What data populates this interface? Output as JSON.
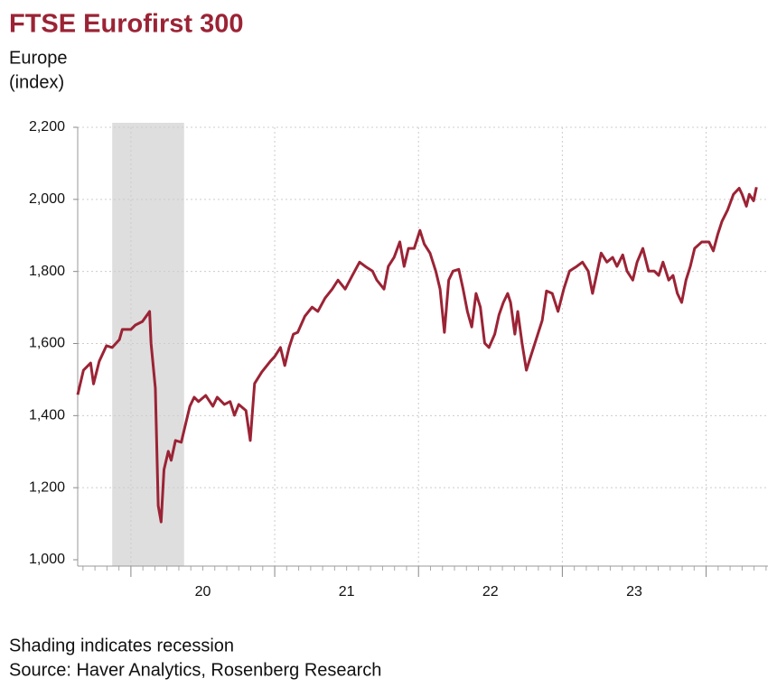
{
  "chart_data": {
    "type": "line",
    "title": "FTSE Eurofirst 300",
    "subtitle": "Europe",
    "y_label": "(index)",
    "notes": [
      "Shading indicates recession",
      "Source: Haver Analytics, Rosenberg Research"
    ],
    "color": "#9b2335",
    "recession": [
      2019.87,
      2020.37
    ],
    "recession_color": "#dedede",
    "xlim": [
      2019.63,
      2024.43
    ],
    "xticks": [
      {
        "value": 2020.5,
        "label": "20"
      },
      {
        "value": 2021.5,
        "label": "21"
      },
      {
        "value": 2022.5,
        "label": "22"
      },
      {
        "value": 2023.5,
        "label": "23"
      }
    ],
    "year_ticks": [
      2020,
      2021,
      2022,
      2023,
      2024
    ],
    "ylim": [
      1000,
      2200
    ],
    "yticks": [
      {
        "value": 1000,
        "label": "1,000"
      },
      {
        "value": 1200,
        "label": "1,200"
      },
      {
        "value": 1400,
        "label": "1,400"
      },
      {
        "value": 1600,
        "label": "1,600"
      },
      {
        "value": 1800,
        "label": "1,800"
      },
      {
        "value": 2000,
        "label": "2,000"
      },
      {
        "value": 2200,
        "label": "2,200"
      }
    ],
    "grid": true,
    "x": [
      2019.63,
      2019.67,
      2019.72,
      2019.74,
      2019.78,
      2019.83,
      2019.87,
      2019.92,
      2019.94,
      2020.0,
      2020.03,
      2020.08,
      2020.13,
      2020.14,
      2020.17,
      2020.19,
      2020.21,
      2020.23,
      2020.26,
      2020.28,
      2020.31,
      2020.35,
      2020.38,
      2020.41,
      2020.44,
      2020.47,
      2020.52,
      2020.57,
      2020.6,
      2020.65,
      2020.69,
      2020.72,
      2020.75,
      2020.8,
      2020.83,
      2020.86,
      2020.91,
      2020.97,
      2021.0,
      2021.04,
      2021.07,
      2021.1,
      2021.13,
      2021.16,
      2021.21,
      2021.26,
      2021.3,
      2021.35,
      2021.4,
      2021.44,
      2021.49,
      2021.54,
      2021.59,
      2021.63,
      2021.68,
      2021.71,
      2021.76,
      2021.79,
      2021.83,
      2021.87,
      2021.9,
      2021.93,
      2021.97,
      2022.01,
      2022.04,
      2022.08,
      2022.12,
      2022.15,
      2022.18,
      2022.21,
      2022.24,
      2022.28,
      2022.31,
      2022.34,
      2022.37,
      2022.4,
      2022.43,
      2022.46,
      2022.49,
      2022.53,
      2022.56,
      2022.59,
      2022.62,
      2022.64,
      2022.67,
      2022.69,
      2022.72,
      2022.75,
      2022.78,
      2022.82,
      2022.86,
      2022.89,
      2022.93,
      2022.97,
      2023.01,
      2023.05,
      2023.1,
      2023.14,
      2023.18,
      2023.21,
      2023.23,
      2023.27,
      2023.31,
      2023.35,
      2023.38,
      2023.42,
      2023.45,
      2023.49,
      2023.52,
      2023.56,
      2023.6,
      2023.64,
      2023.67,
      2023.7,
      2023.74,
      2023.77,
      2023.8,
      2023.83,
      2023.86,
      2023.89,
      2023.92,
      2023.97,
      2024.02,
      2024.05,
      2024.08,
      2024.11,
      2024.15,
      2024.19,
      2024.23,
      2024.25,
      2024.28,
      2024.3,
      2024.33,
      2024.35
    ],
    "values": [
      1458,
      1526,
      1546,
      1488,
      1551,
      1594,
      1589,
      1611,
      1639,
      1639,
      1651,
      1661,
      1689,
      1601,
      1476,
      1150,
      1105,
      1250,
      1301,
      1276,
      1331,
      1326,
      1376,
      1426,
      1451,
      1439,
      1456,
      1426,
      1451,
      1431,
      1439,
      1401,
      1431,
      1414,
      1331,
      1489,
      1521,
      1551,
      1564,
      1589,
      1539,
      1589,
      1626,
      1631,
      1676,
      1701,
      1689,
      1726,
      1751,
      1776,
      1751,
      1789,
      1826,
      1814,
      1801,
      1776,
      1751,
      1814,
      1839,
      1882,
      1814,
      1864,
      1864,
      1914,
      1876,
      1851,
      1801,
      1751,
      1631,
      1776,
      1801,
      1806,
      1751,
      1689,
      1646,
      1739,
      1701,
      1601,
      1589,
      1626,
      1680,
      1714,
      1739,
      1714,
      1626,
      1689,
      1601,
      1526,
      1564,
      1614,
      1664,
      1746,
      1739,
      1689,
      1751,
      1801,
      1814,
      1826,
      1801,
      1739,
      1776,
      1851,
      1826,
      1839,
      1814,
      1846,
      1801,
      1776,
      1826,
      1864,
      1801,
      1801,
      1789,
      1826,
      1776,
      1789,
      1739,
      1714,
      1776,
      1814,
      1864,
      1882,
      1882,
      1857,
      1902,
      1939,
      1971,
      2014,
      2031,
      2014,
      1981,
      2014,
      1996,
      2034
    ]
  }
}
